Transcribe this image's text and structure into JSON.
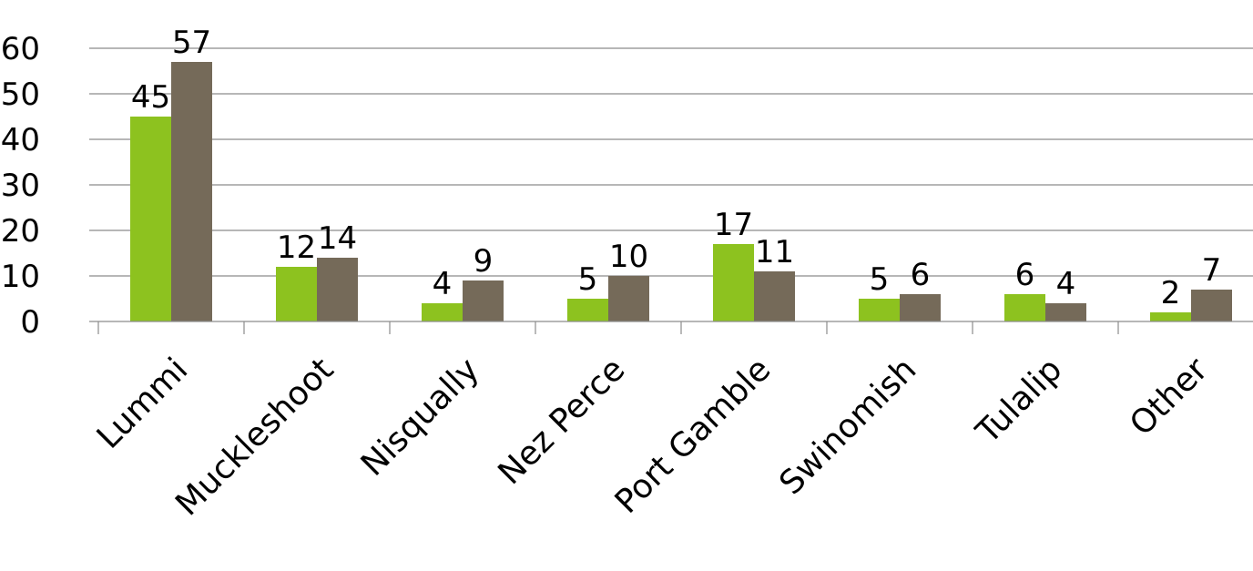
{
  "chart_data": {
    "type": "bar",
    "title": "",
    "xlabel": "",
    "ylabel": "",
    "categories": [
      "Lummi",
      "Muckleshoot",
      "Nisqually",
      "Nez Perce",
      "Port Gamble",
      "Swinomish",
      "Tulalip",
      "Other"
    ],
    "series": [
      {
        "values": [
          45,
          12,
          4,
          5,
          17,
          5,
          6,
          2
        ],
        "color": "#8dc21f"
      },
      {
        "values": [
          57,
          14,
          9,
          10,
          11,
          6,
          4,
          7
        ],
        "color": "#756a59"
      }
    ],
    "ylim": [
      0,
      60
    ],
    "yticks": [
      0,
      10,
      20,
      30,
      40,
      50,
      60
    ],
    "grid": true,
    "legend": "none",
    "data_labels": true
  }
}
